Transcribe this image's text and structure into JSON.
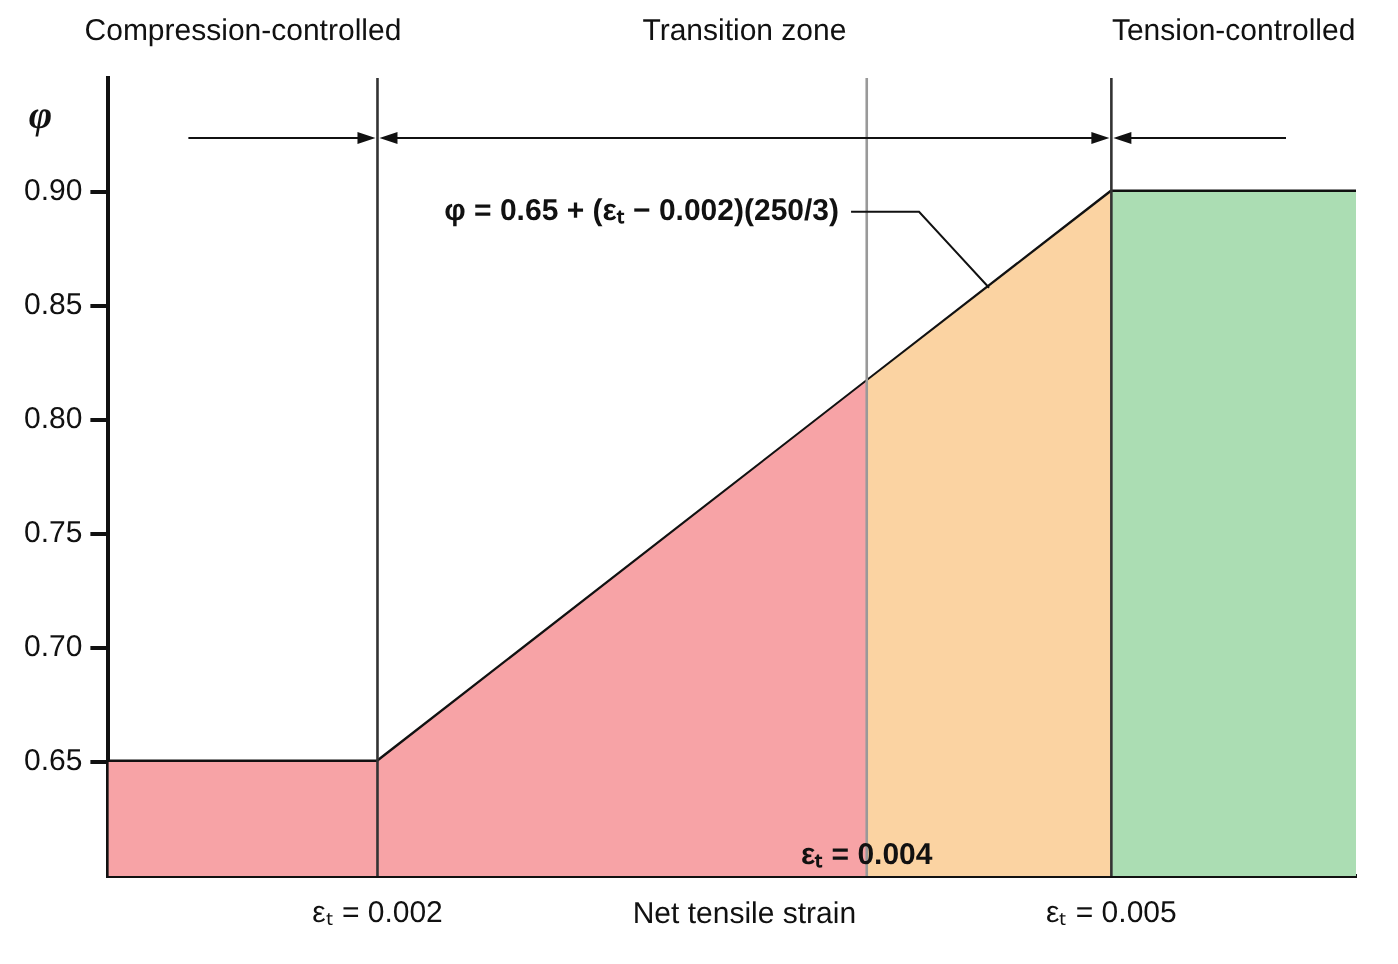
{
  "chart_data": {
    "type": "line",
    "xlabel": "Net tensile strain",
    "ylabel": "φ",
    "xlim": [
      0.0009,
      0.006
    ],
    "xticks": [
      {
        "value": 0.002,
        "label": "εₜ = 0.002"
      },
      {
        "value": 0.005,
        "label": "εₜ = 0.005"
      }
    ],
    "ylim": [
      0.6,
      0.95
    ],
    "yticks": [
      {
        "value": 0.65,
        "label": "0.65"
      },
      {
        "value": 0.7,
        "label": "0.70"
      },
      {
        "value": 0.75,
        "label": "0.75"
      },
      {
        "value": 0.8,
        "label": "0.80"
      },
      {
        "value": 0.85,
        "label": "0.85"
      },
      {
        "value": 0.9,
        "label": "0.90"
      }
    ],
    "grid": false,
    "legend": false,
    "marker": "none",
    "series": [
      {
        "type": "area",
        "color": "#f7a3a6",
        "x": [
          0.0009,
          0.002,
          0.004
        ],
        "values": [
          0.65,
          0.65,
          0.817
        ]
      },
      {
        "type": "area",
        "color": "#fbd3a2",
        "x": [
          0.004,
          0.005
        ],
        "values": [
          0.817,
          0.9
        ]
      },
      {
        "type": "area",
        "color": "#abddb3",
        "x": [
          0.005,
          0.006
        ],
        "values": [
          0.9,
          0.9
        ]
      },
      {
        "type": "line",
        "color": "#111111",
        "x": [
          0.0009,
          0.002,
          0.005,
          0.006
        ],
        "values": [
          0.65,
          0.65,
          0.9,
          0.9
        ]
      }
    ],
    "ref_lines": [
      {
        "axis": "x",
        "value": 0.002,
        "color": "#333333"
      },
      {
        "axis": "x",
        "value": 0.005,
        "color": "#333333"
      },
      {
        "axis": "x",
        "value": 0.004,
        "label": "εₜ = 0.004",
        "color": "#999999"
      }
    ],
    "annotations": [
      "Compression-controlled",
      "Transition zone",
      "Tension-controlled",
      {
        "text": "φ = 0.65 + (εₜ − 0.002)(250/3)",
        "x": 0.0045,
        "y": 0.858
      }
    ]
  }
}
